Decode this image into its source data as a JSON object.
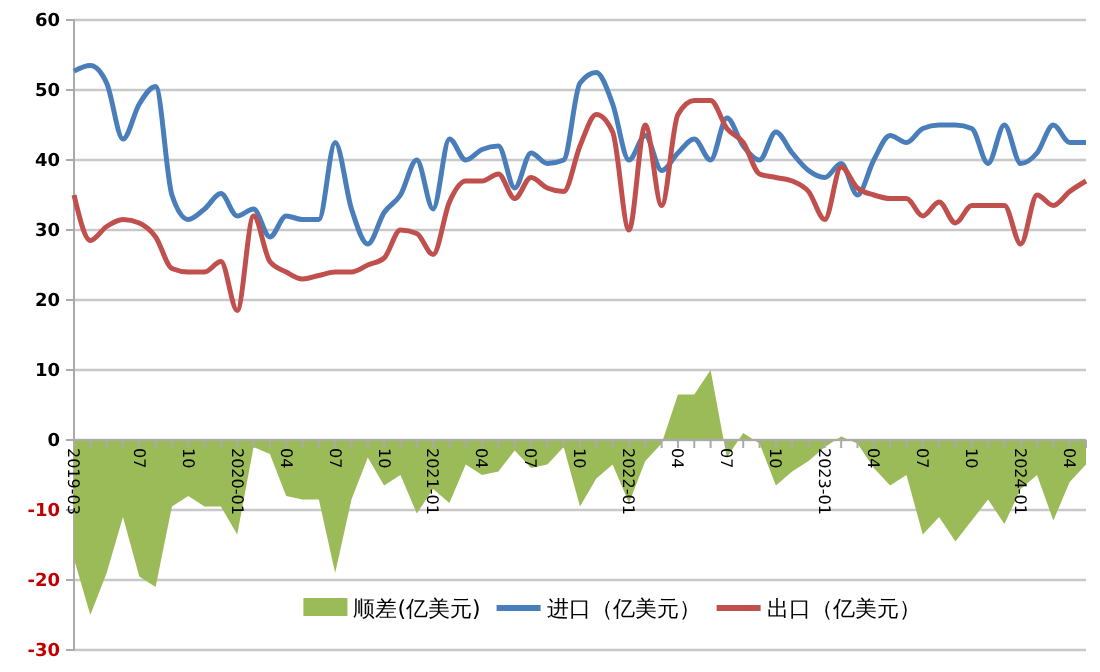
{
  "chart_data": {
    "type": "line",
    "categories": [
      "2019-03",
      null,
      null,
      null,
      "07",
      null,
      null,
      "10",
      null,
      null,
      "2020-01",
      null,
      null,
      "04",
      null,
      null,
      "07",
      null,
      null,
      "10",
      null,
      null,
      "2021-01",
      null,
      null,
      "04",
      null,
      null,
      "07",
      null,
      null,
      "10",
      null,
      null,
      "2022-01",
      null,
      null,
      "04",
      null,
      null,
      "07",
      null,
      null,
      "10",
      null,
      null,
      "2023-01",
      null,
      null,
      "04",
      null,
      null,
      "07",
      null,
      null,
      "10",
      null,
      null,
      "2024-01",
      null,
      null,
      "04",
      null
    ],
    "series": [
      {
        "name": "顺差(亿美元)",
        "type": "area",
        "color": "#9bbb59",
        "values": [
          -17,
          -25,
          -19,
          -11,
          -19.5,
          -21,
          -9.5,
          -8,
          -9.5,
          -9.5,
          -13.5,
          -1,
          -2,
          -8,
          -8.5,
          -8.5,
          -19,
          -8.5,
          -2.5,
          -6.5,
          -5,
          -10.5,
          -7,
          -9,
          -3.5,
          -5,
          -4.5,
          -1.5,
          -4,
          -3.5,
          -1,
          -9.5,
          -5.5,
          -3.5,
          -9,
          -3,
          -0.5,
          6.5,
          6.5,
          10,
          -2.5,
          1,
          -0.5,
          -6.5,
          -4.5,
          -3,
          -1,
          0.5,
          -0.5,
          -4,
          -6.5,
          -5,
          -13.5,
          -11,
          -14.5,
          -11.5,
          -8.5,
          -12,
          -7,
          -5,
          -11.5,
          -6,
          -3.5
        ]
      },
      {
        "name": "进口（亿美元）",
        "color": "#4a7ebb",
        "values": [
          52.7,
          53.5,
          51,
          43,
          48,
          50.5,
          35,
          31.5,
          33,
          35.2,
          32,
          33,
          29,
          32,
          31.5,
          31.5,
          42.5,
          33,
          28,
          32.5,
          35,
          40,
          33,
          43,
          40,
          41.5,
          42,
          36,
          41,
          39.5,
          40,
          51,
          52.5,
          48,
          40,
          43.5,
          38.5,
          41,
          43,
          40,
          46,
          42,
          40,
          44,
          41,
          38.5,
          37.5,
          39.5,
          35,
          40,
          43.5,
          42.5,
          44.5,
          45,
          45,
          44.5,
          39.5,
          45,
          39.5,
          41,
          45,
          42.5,
          42.5
        ]
      },
      {
        "name": "出口（亿美元）",
        "color": "#c0504d",
        "values": [
          35,
          28.5,
          30.5,
          31.5,
          31,
          29,
          24.5,
          24,
          24,
          25.5,
          18.5,
          32,
          25.5,
          24,
          23,
          23.5,
          24,
          24,
          25,
          26,
          30,
          29.5,
          26.5,
          34,
          37,
          37,
          38,
          34.5,
          37.5,
          36,
          35.5,
          42,
          46.5,
          44,
          30,
          45,
          33.5,
          46.5,
          48.5,
          48.5,
          44.5,
          42.5,
          38,
          37.5,
          37,
          35.5,
          31.5,
          39,
          36,
          35,
          34.5,
          34.5,
          32,
          34,
          31,
          33.5,
          33.5,
          33.5,
          28,
          35,
          33.5,
          35.5,
          37
        ]
      }
    ],
    "ylim": [
      -30,
      60
    ],
    "yticks": [
      -30,
      -20,
      -10,
      0,
      10,
      20,
      30,
      40,
      50,
      60
    ],
    "grid": "y",
    "legend": "bottom",
    "marker": "none",
    "line_style": "solid"
  }
}
